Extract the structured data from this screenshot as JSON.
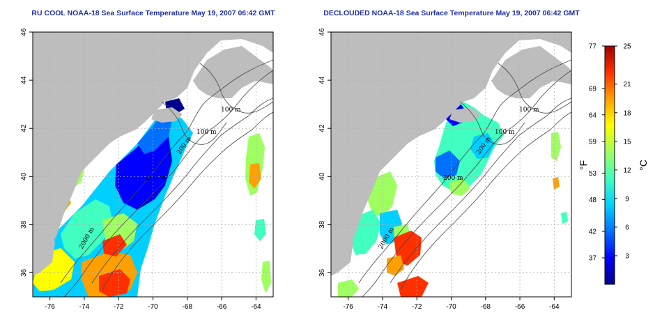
{
  "panels": [
    {
      "title": "RU COOL NOAA-18 Sea Surface Temperature May 19, 2007 06:42 GMT",
      "contour_labels": [
        "100 m",
        "100 m",
        "200 m",
        "200 m",
        "2000 m"
      ]
    },
    {
      "title": "DECLOUDED NOAA-18 Sea Surface Temperature May 19, 2007 06:42 GMT",
      "contour_labels": [
        "100 m",
        "100 m",
        "200 m",
        "200 m",
        "2000 m"
      ]
    }
  ],
  "map_axes": {
    "lon_range": [
      -77,
      -63
    ],
    "lat_range": [
      35,
      46
    ],
    "lon_ticks": [
      "-76",
      "-74",
      "-72",
      "-70",
      "-68",
      "-66",
      "-64"
    ],
    "lat_ticks": [
      "36",
      "38",
      "40",
      "42",
      "44",
      "46"
    ]
  },
  "colorbar": {
    "fahrenheit_label": "°F",
    "celsius_label": "°C",
    "fahrenheit_ticks": [
      "77",
      "69",
      "64",
      "59",
      "53",
      "48",
      "42",
      "37"
    ],
    "celsius_ticks": [
      "25",
      "21",
      "18",
      "15",
      "12",
      "9",
      "6",
      "3"
    ],
    "celsius_range": [
      0,
      25
    ],
    "colors": [
      "#00008f",
      "#0000ff",
      "#0070ff",
      "#00d0ff",
      "#40ffc0",
      "#a0ff60",
      "#ffff00",
      "#ffa000",
      "#ff3000",
      "#a00000"
    ]
  },
  "colors": {
    "land": "#bdbdbd",
    "ocean": "#ffffff",
    "title": "#1f2fa0",
    "grid": "#b0b0b0",
    "contour": "#444444"
  }
}
